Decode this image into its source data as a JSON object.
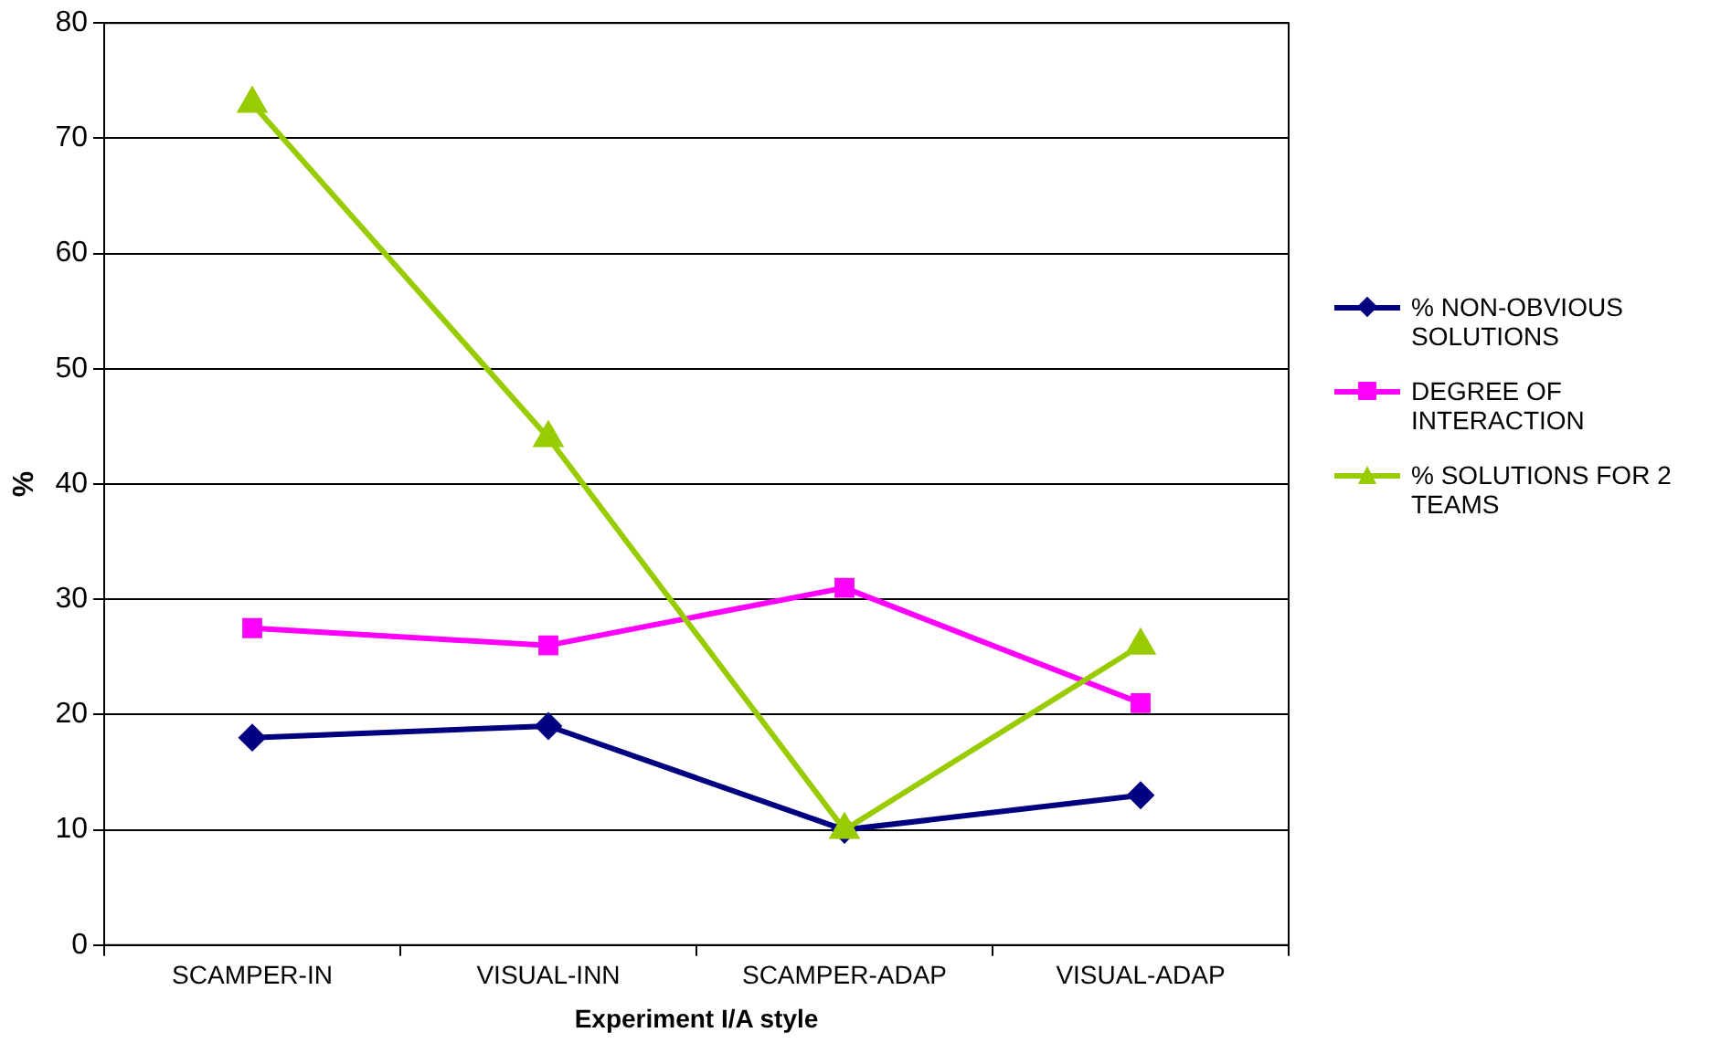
{
  "chart_data": {
    "type": "line",
    "xlabel": "Experiment I/A style",
    "ylabel": "%",
    "categories": [
      "SCAMPER-IN",
      "VISUAL-INN",
      "SCAMPER-ADAP",
      "VISUAL-ADAP"
    ],
    "series": [
      {
        "name": "% NON-OBVIOUS SOLUTIONS",
        "color": "#000080",
        "marker": "diamond",
        "values": [
          18,
          19,
          10,
          13
        ]
      },
      {
        "name": "DEGREE OF INTERACTION",
        "color": "#ff00ff",
        "marker": "square",
        "values": [
          27.5,
          26,
          31,
          21
        ]
      },
      {
        "name": "% SOLUTIONS FOR 2 TEAMS",
        "color": "#99cc00",
        "marker": "triangle",
        "values": [
          73,
          44,
          10,
          26
        ]
      }
    ],
    "ylim": [
      0,
      80
    ],
    "yticks": [
      0,
      10,
      20,
      30,
      40,
      50,
      60,
      70,
      80
    ],
    "grid": "y",
    "legend": "right",
    "line_style": "solid"
  }
}
